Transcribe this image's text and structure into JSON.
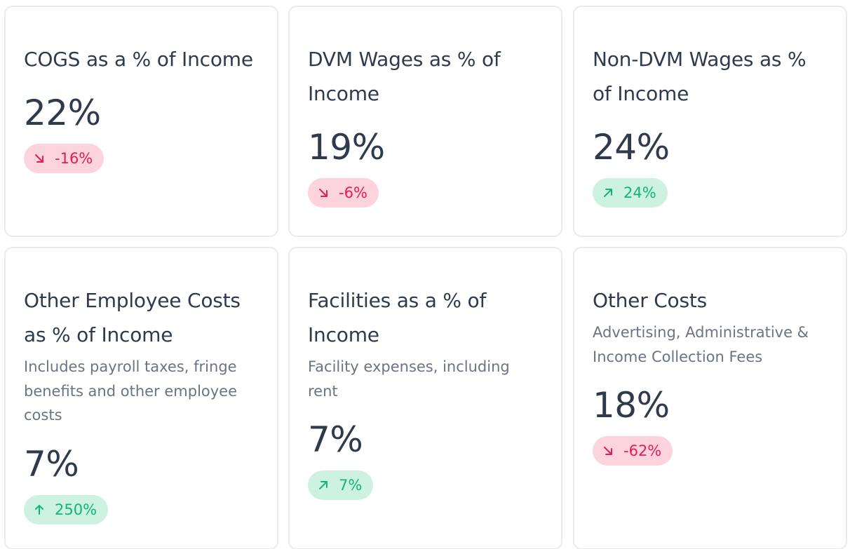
{
  "cards": [
    {
      "title": "COGS as a % of Income",
      "subtitle": "",
      "value": "22%",
      "change": "-16%",
      "trend": "down",
      "trend_icon": "arrow-down-right-icon"
    },
    {
      "title": "DVM Wages as % of Income",
      "subtitle": "",
      "value": "19%",
      "change": "-6%",
      "trend": "down",
      "trend_icon": "arrow-down-right-icon"
    },
    {
      "title": "Non-DVM Wages as % of Income",
      "subtitle": "",
      "value": "24%",
      "change": "24%",
      "trend": "up",
      "trend_icon": "arrow-up-right-icon"
    },
    {
      "title": "Other Employee Costs as % of Income",
      "subtitle": "Includes payroll taxes, fringe benefits and other employee costs",
      "value": "7%",
      "change": "250%",
      "trend": "up",
      "trend_icon": "arrow-up-icon"
    },
    {
      "title": "Facilities as a % of Income",
      "subtitle": "Facility expenses, including rent",
      "value": "7%",
      "change": "7%",
      "trend": "up",
      "trend_icon": "arrow-up-right-icon"
    },
    {
      "title": "Other Costs",
      "subtitle": "Advertising, Administrative & Income Collection Fees",
      "value": "18%",
      "change": "-62%",
      "trend": "down",
      "trend_icon": "arrow-down-right-icon"
    }
  ],
  "colors": {
    "text_primary": "#2f3a4c",
    "text_secondary": "#6b7482",
    "card_border": "#e9ebee",
    "negative_bg": "#fdd3dd",
    "negative_fg": "#e11d56",
    "positive_bg": "#cdf2e1",
    "positive_fg": "#12b479"
  }
}
